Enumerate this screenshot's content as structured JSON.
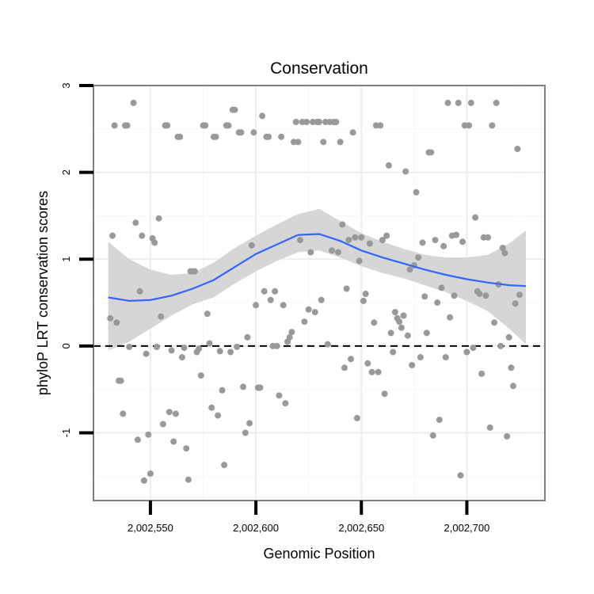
{
  "chart_data": {
    "type": "scatter",
    "title": "Conservation",
    "xlabel": "Genomic Position",
    "ylabel": "phyloP LRT conservation scores",
    "xlim": [
      2002523,
      2002737
    ],
    "ylim": [
      -1.78,
      3.0
    ],
    "x_ticks": [
      2002550,
      2002600,
      2002650,
      2002700
    ],
    "x_tick_labels": [
      "2,002,550",
      "2,002,600",
      "2,002,650",
      "2,002,700"
    ],
    "y_ticks": [
      -1,
      0,
      1,
      2,
      3
    ],
    "y_tick_labels": [
      "-1",
      "0",
      "1",
      "2",
      "3"
    ],
    "reference_line_y": 0,
    "grid": true,
    "colors": {
      "points": "#999999",
      "smooth": "#3366ff",
      "ribbon": "#d6d6d6",
      "reference": "#000000",
      "panel_border": "#7f7f7f",
      "grid_major": "#ededed",
      "grid_minor": "#f7f7f7"
    },
    "points": [
      [
        2002531,
        0.32
      ],
      [
        2002532,
        1.27
      ],
      [
        2002533,
        2.54
      ],
      [
        2002534,
        0.27
      ],
      [
        2002535,
        -0.4
      ],
      [
        2002536,
        -0.4
      ],
      [
        2002537,
        -0.78
      ],
      [
        2002538,
        2.54
      ],
      [
        2002539,
        2.54
      ],
      [
        2002540,
        -0.01
      ],
      [
        2002542,
        2.8
      ],
      [
        2002543,
        1.42
      ],
      [
        2002544,
        -1.08
      ],
      [
        2002545,
        0.63
      ],
      [
        2002546,
        1.27
      ],
      [
        2002547,
        -1.55
      ],
      [
        2002548,
        -0.09
      ],
      [
        2002549,
        -1.02
      ],
      [
        2002550,
        -1.47
      ],
      [
        2002551,
        1.24
      ],
      [
        2002552,
        1.19
      ],
      [
        2002553,
        -0.01
      ],
      [
        2002554,
        1.47
      ],
      [
        2002555,
        0.34
      ],
      [
        2002556,
        -0.9
      ],
      [
        2002557,
        2.54
      ],
      [
        2002558,
        2.54
      ],
      [
        2002559,
        -0.76
      ],
      [
        2002560,
        -0.05
      ],
      [
        2002561,
        -1.1
      ],
      [
        2002562,
        -0.78
      ],
      [
        2002563,
        2.41
      ],
      [
        2002564,
        2.41
      ],
      [
        2002565,
        -0.13
      ],
      [
        2002566,
        -0.02
      ],
      [
        2002567,
        -1.18
      ],
      [
        2002568,
        -1.54
      ],
      [
        2002569,
        0.86
      ],
      [
        2002570,
        0.86
      ],
      [
        2002571,
        0.86
      ],
      [
        2002572,
        -0.07
      ],
      [
        2002573,
        -0.03
      ],
      [
        2002574,
        -0.34
      ],
      [
        2002575,
        2.54
      ],
      [
        2002576,
        2.54
      ],
      [
        2002577,
        0.37
      ],
      [
        2002578,
        0.03
      ],
      [
        2002579,
        -0.71
      ],
      [
        2002580,
        2.41
      ],
      [
        2002581,
        2.41
      ],
      [
        2002582,
        -0.8
      ],
      [
        2002583,
        -0.06
      ],
      [
        2002584,
        -0.51
      ],
      [
        2002585,
        -1.37
      ],
      [
        2002586,
        2.54
      ],
      [
        2002587,
        2.54
      ],
      [
        2002588,
        -0.07
      ],
      [
        2002589,
        2.72
      ],
      [
        2002590,
        2.72
      ],
      [
        2002591,
        -0.01
      ],
      [
        2002592,
        2.46
      ],
      [
        2002593,
        2.46
      ],
      [
        2002594,
        -0.47
      ],
      [
        2002595,
        -1.0
      ],
      [
        2002596,
        0.1
      ],
      [
        2002597,
        -0.89
      ],
      [
        2002598,
        1.16
      ],
      [
        2002599,
        2.46
      ],
      [
        2002600,
        0.47
      ],
      [
        2002601,
        -0.48
      ],
      [
        2002602,
        -0.48
      ],
      [
        2002603,
        2.65
      ],
      [
        2002604,
        0.63
      ],
      [
        2002605,
        2.41
      ],
      [
        2002606,
        2.41
      ],
      [
        2002607,
        0.53
      ],
      [
        2002608,
        0.0
      ],
      [
        2002609,
        0.63
      ],
      [
        2002610,
        0.0
      ],
      [
        2002611,
        -0.57
      ],
      [
        2002612,
        2.41
      ],
      [
        2002613,
        0.47
      ],
      [
        2002614,
        -0.66
      ],
      [
        2002615,
        0.05
      ],
      [
        2002616,
        0.1
      ],
      [
        2002617,
        0.16
      ],
      [
        2002618,
        2.35
      ],
      [
        2002619,
        2.58
      ],
      [
        2002620,
        2.35
      ],
      [
        2002621,
        1.22
      ],
      [
        2002622,
        2.58
      ],
      [
        2002623,
        0.28
      ],
      [
        2002624,
        2.58
      ],
      [
        2002625,
        0.42
      ],
      [
        2002626,
        1.08
      ],
      [
        2002627,
        2.58
      ],
      [
        2002628,
        0.39
      ],
      [
        2002629,
        2.58
      ],
      [
        2002630,
        2.58
      ],
      [
        2002631,
        0.53
      ],
      [
        2002632,
        2.35
      ],
      [
        2002633,
        2.58
      ],
      [
        2002634,
        0.02
      ],
      [
        2002635,
        2.58
      ],
      [
        2002636,
        1.1
      ],
      [
        2002637,
        2.58
      ],
      [
        2002638,
        2.58
      ],
      [
        2002639,
        1.08
      ],
      [
        2002640,
        2.35
      ],
      [
        2002641,
        1.4
      ],
      [
        2002642,
        -0.25
      ],
      [
        2002643,
        0.66
      ],
      [
        2002644,
        1.22
      ],
      [
        2002645,
        -0.15
      ],
      [
        2002646,
        2.46
      ],
      [
        2002647,
        1.25
      ],
      [
        2002648,
        -0.83
      ],
      [
        2002649,
        0.98
      ],
      [
        2002650,
        1.25
      ],
      [
        2002651,
        0.52
      ],
      [
        2002652,
        0.6
      ],
      [
        2002653,
        -0.2
      ],
      [
        2002654,
        1.18
      ],
      [
        2002655,
        -0.3
      ],
      [
        2002656,
        0.27
      ],
      [
        2002657,
        2.54
      ],
      [
        2002658,
        -0.3
      ],
      [
        2002659,
        2.54
      ],
      [
        2002660,
        1.22
      ],
      [
        2002661,
        -0.55
      ],
      [
        2002662,
        1.27
      ],
      [
        2002663,
        2.08
      ],
      [
        2002664,
        0.15
      ],
      [
        2002665,
        -0.07
      ],
      [
        2002666,
        0.39
      ],
      [
        2002667,
        0.32
      ],
      [
        2002668,
        0.28
      ],
      [
        2002669,
        0.21
      ],
      [
        2002670,
        0.35
      ],
      [
        2002671,
        2.01
      ],
      [
        2002672,
        0.12
      ],
      [
        2002673,
        0.88
      ],
      [
        2002674,
        -0.22
      ],
      [
        2002675,
        0.93
      ],
      [
        2002676,
        1.77
      ],
      [
        2002677,
        1.02
      ],
      [
        2002678,
        -0.13
      ],
      [
        2002679,
        1.19
      ],
      [
        2002680,
        0.57
      ],
      [
        2002681,
        0.15
      ],
      [
        2002682,
        2.23
      ],
      [
        2002683,
        2.23
      ],
      [
        2002684,
        -1.03
      ],
      [
        2002685,
        1.22
      ],
      [
        2002686,
        0.5
      ],
      [
        2002687,
        -0.85
      ],
      [
        2002688,
        0.67
      ],
      [
        2002689,
        1.15
      ],
      [
        2002690,
        -0.13
      ],
      [
        2002691,
        2.8
      ],
      [
        2002692,
        0.33
      ],
      [
        2002693,
        1.27
      ],
      [
        2002694,
        0.58
      ],
      [
        2002695,
        1.28
      ],
      [
        2002696,
        2.8
      ],
      [
        2002697,
        -1.49
      ],
      [
        2002698,
        1.2
      ],
      [
        2002699,
        2.54
      ],
      [
        2002700,
        -0.07
      ],
      [
        2002701,
        2.54
      ],
      [
        2002702,
        2.8
      ],
      [
        2002703,
        -0.02
      ],
      [
        2002704,
        1.48
      ],
      [
        2002705,
        0.63
      ],
      [
        2002706,
        0.6
      ],
      [
        2002707,
        -0.32
      ],
      [
        2002708,
        1.25
      ],
      [
        2002709,
        0.58
      ],
      [
        2002710,
        1.25
      ],
      [
        2002711,
        -0.94
      ],
      [
        2002712,
        2.54
      ],
      [
        2002713,
        0.27
      ],
      [
        2002714,
        2.8
      ],
      [
        2002715,
        0.71
      ],
      [
        2002716,
        0.0
      ],
      [
        2002717,
        1.13
      ],
      [
        2002718,
        1.07
      ],
      [
        2002719,
        -1.04
      ],
      [
        2002720,
        0.1
      ],
      [
        2002721,
        -0.25
      ],
      [
        2002722,
        -0.46
      ],
      [
        2002723,
        0.49
      ],
      [
        2002724,
        2.27
      ],
      [
        2002725,
        0.59
      ]
    ],
    "smooth": {
      "x": [
        2002530,
        2002540,
        2002550,
        2002560,
        2002570,
        2002580,
        2002590,
        2002600,
        2002610,
        2002620,
        2002630,
        2002640,
        2002650,
        2002660,
        2002670,
        2002680,
        2002690,
        2002700,
        2002710,
        2002720,
        2002728
      ],
      "y": [
        0.56,
        0.52,
        0.53,
        0.58,
        0.66,
        0.76,
        0.91,
        1.06,
        1.17,
        1.28,
        1.29,
        1.21,
        1.1,
        1.02,
        0.95,
        0.88,
        0.82,
        0.77,
        0.73,
        0.7,
        0.69
      ],
      "lower": [
        -0.05,
        0.05,
        0.2,
        0.35,
        0.48,
        0.56,
        0.72,
        0.86,
        0.98,
        1.08,
        1.1,
        1.02,
        0.92,
        0.84,
        0.78,
        0.7,
        0.62,
        0.52,
        0.4,
        0.2,
        0.02
      ],
      "upper": [
        1.2,
        1.0,
        0.88,
        0.82,
        0.84,
        0.96,
        1.13,
        1.27,
        1.4,
        1.52,
        1.58,
        1.44,
        1.3,
        1.2,
        1.12,
        1.05,
        1.02,
        1.02,
        1.05,
        1.18,
        1.33
      ]
    }
  }
}
